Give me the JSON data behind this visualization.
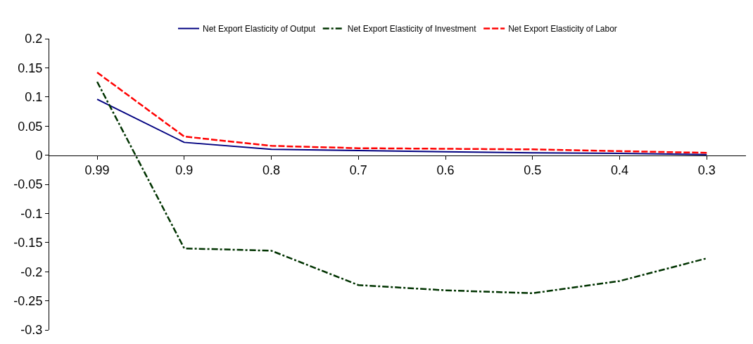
{
  "chart_data": {
    "type": "line",
    "categories": [
      "0.99",
      "0.9",
      "0.8",
      "0.7",
      "0.6",
      "0.5",
      "0.4",
      "0.3"
    ],
    "series": [
      {
        "name": "Net Export Elasticity of Output",
        "color": "#000080",
        "line_style": "solid",
        "values": [
          0.096,
          0.022,
          0.01,
          0.008,
          0.006,
          0.004,
          0.003,
          0.001
        ]
      },
      {
        "name": "Net Export Elasticity of Investment",
        "color": "#003300",
        "line_style": "dashdot",
        "values": [
          0.126,
          -0.16,
          -0.164,
          -0.223,
          -0.232,
          -0.237,
          -0.216,
          -0.177
        ]
      },
      {
        "name": "Net Export Elasticity of Labor",
        "color": "#ff0000",
        "line_style": "dashed",
        "values": [
          0.142,
          0.032,
          0.016,
          0.012,
          0.011,
          0.01,
          0.007,
          0.004
        ]
      }
    ],
    "ylim": [
      -0.3,
      0.2
    ],
    "yticks": [
      -0.3,
      -0.25,
      -0.2,
      -0.15,
      -0.1,
      -0.05,
      0,
      0.05,
      0.1,
      0.15,
      0.2
    ],
    "grid": false,
    "legend": "top",
    "marker": "none"
  }
}
